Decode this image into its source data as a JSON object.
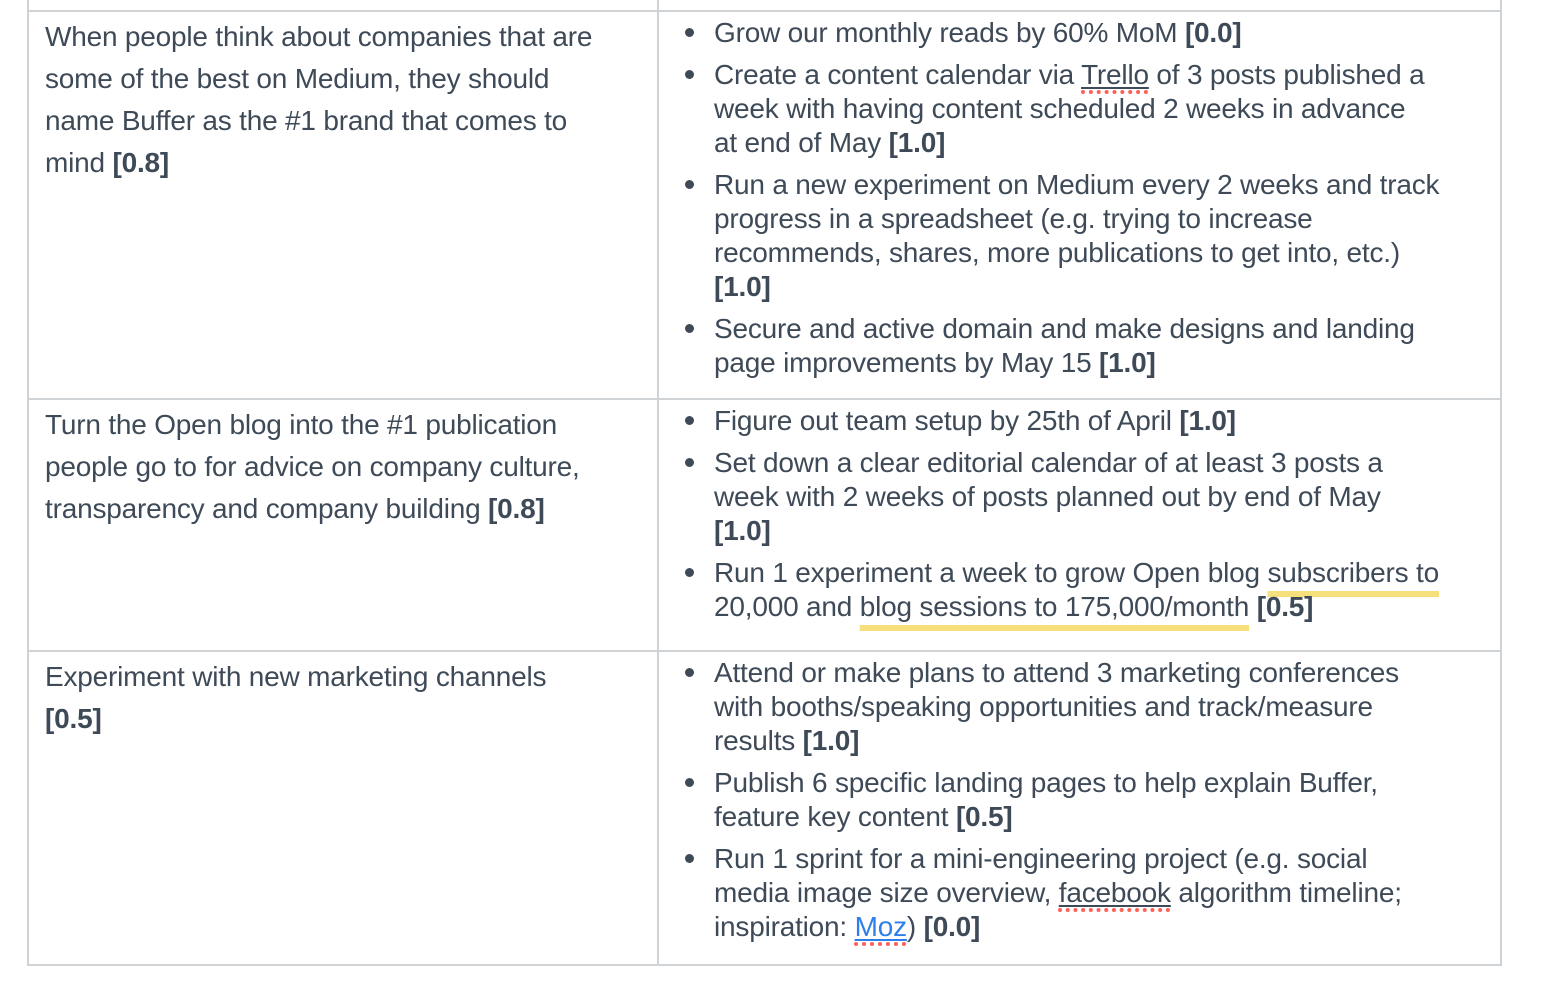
{
  "colors": {
    "text": "#3e4a57",
    "table_border": "#cfd3d6",
    "link_blue": "#2e7fec",
    "spellcheck_red": "#ff6157",
    "highlight_yellow": "#f6e07c",
    "background": "#ffffff"
  },
  "table": {
    "columns": [
      "objective",
      "key_results"
    ],
    "rows": [
      {
        "objective": {
          "lines": [
            [
              "When people think about companies that are"
            ],
            [
              "some of the best on Medium, they should"
            ],
            [
              "name Buffer as the #1 brand that comes to"
            ],
            [
              "mind ",
              "[0.8]"
            ]
          ],
          "score": "[0.8]"
        },
        "key_results": [
          {
            "score": "[0.0]",
            "lines": [
              [
                "Grow our monthly reads by 60% MoM ",
                "[0.0]"
              ]
            ]
          },
          {
            "score": "[1.0]",
            "lines": [
              [
                "Create a content calendar via ",
                "Trello",
                " of 3 posts published a"
              ],
              [
                "week with having content scheduled 2 weeks in advance"
              ],
              [
                "at end of May ",
                "[1.0]"
              ]
            ]
          },
          {
            "score": "[1.0]",
            "lines": [
              [
                "Run a new experiment on Medium every 2 weeks and track"
              ],
              [
                "progress in a spreadsheet (e.g. trying to increase"
              ],
              [
                "recommends, shares, more publications to get into, etc.)"
              ],
              [
                "[1.0]"
              ]
            ]
          },
          {
            "score": "[1.0]",
            "lines": [
              [
                "Secure and active domain and make designs and landing"
              ],
              [
                "page improvements by May 15 ",
                "[1.0]"
              ]
            ]
          }
        ]
      },
      {
        "objective": {
          "lines": [
            [
              "Turn the Open blog into the #1 publication"
            ],
            [
              "people go to for advice on company culture,"
            ],
            [
              "transparency and company building ",
              "[0.8]"
            ]
          ],
          "score": "[0.8]"
        },
        "key_results": [
          {
            "score": "[1.0]",
            "lines": [
              [
                "Figure out team setup by 25th of April ",
                "[1.0]"
              ]
            ]
          },
          {
            "score": "[1.0]",
            "lines": [
              [
                "Set down a clear editorial calendar of at least 3 posts a"
              ],
              [
                "week with 2 weeks of posts planned out by end of May"
              ],
              [
                "[1.0]"
              ]
            ]
          },
          {
            "score": "[0.5]",
            "lines": [
              [
                "Run 1 experiment a week to grow Open blog ",
                "subscribers to"
              ],
              [
                "20,000 and ",
                "blog sessions to 175,000/month",
                " ",
                "[0.5]"
              ]
            ]
          }
        ]
      },
      {
        "objective": {
          "lines": [
            [
              "Experiment with new marketing channels"
            ],
            [
              "[0.5]"
            ]
          ],
          "score": "[0.5]"
        },
        "key_results": [
          {
            "score": "[1.0]",
            "lines": [
              [
                "Attend or make plans to attend 3 marketing conferences"
              ],
              [
                "with booths/speaking opportunities and track/measure"
              ],
              [
                "results ",
                "[1.0]"
              ]
            ]
          },
          {
            "score": "[0.5]",
            "lines": [
              [
                "Publish 6 specific landing pages to help explain Buffer,"
              ],
              [
                "feature key content ",
                "[0.5]"
              ]
            ]
          },
          {
            "score": "[0.0]",
            "lines": [
              [
                "Run 1 sprint for a mini-engineering project (e.g. social"
              ],
              [
                "media image size overview, ",
                "facebook",
                " algorithm timeline;"
              ],
              [
                "inspiration: ",
                "Moz",
                ") ",
                "[0.0]"
              ]
            ]
          }
        ]
      }
    ]
  }
}
